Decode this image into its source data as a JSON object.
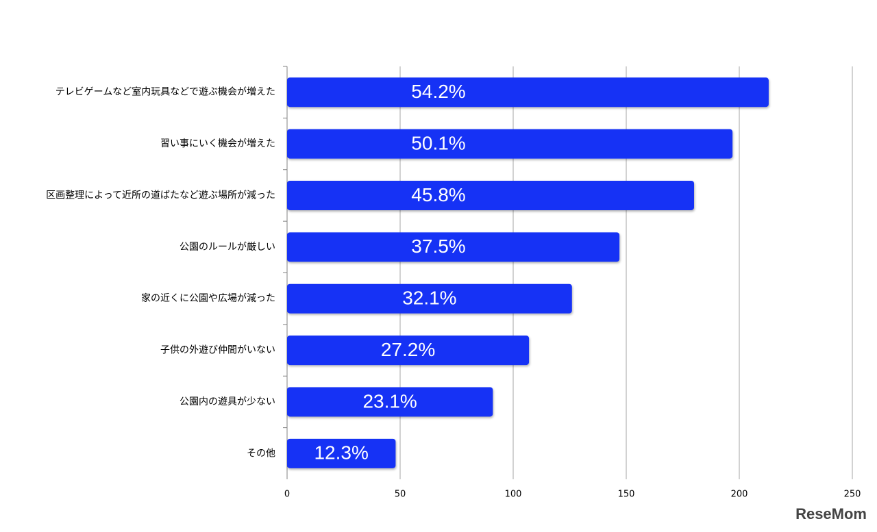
{
  "chart_data": {
    "type": "bar",
    "orientation": "horizontal",
    "categories": [
      "テレビゲームなど室内玩具などで遊ぶ機会が増えた",
      "習い事にいく機会が増えた",
      "区画整理によって近所の道ばたなど遊ぶ場所が減った",
      "公園のルールが厳しい",
      "家の近くに公園や広場が減った",
      "子供の外遊び仲間がいない",
      "公園内の遊具が少ない",
      "その他"
    ],
    "values": [
      213,
      197,
      180,
      147,
      126,
      107,
      91,
      48
    ],
    "value_labels": [
      "54.2%",
      "50.1%",
      "45.8%",
      "37.5%",
      "32.1%",
      "27.2%",
      "23.1%",
      "12.3%"
    ],
    "color": "#1432f5",
    "xlim": [
      0,
      250
    ],
    "xticks": [
      0,
      50,
      100,
      150,
      200,
      250
    ],
    "grid": true,
    "watermark": "ReseMom"
  }
}
